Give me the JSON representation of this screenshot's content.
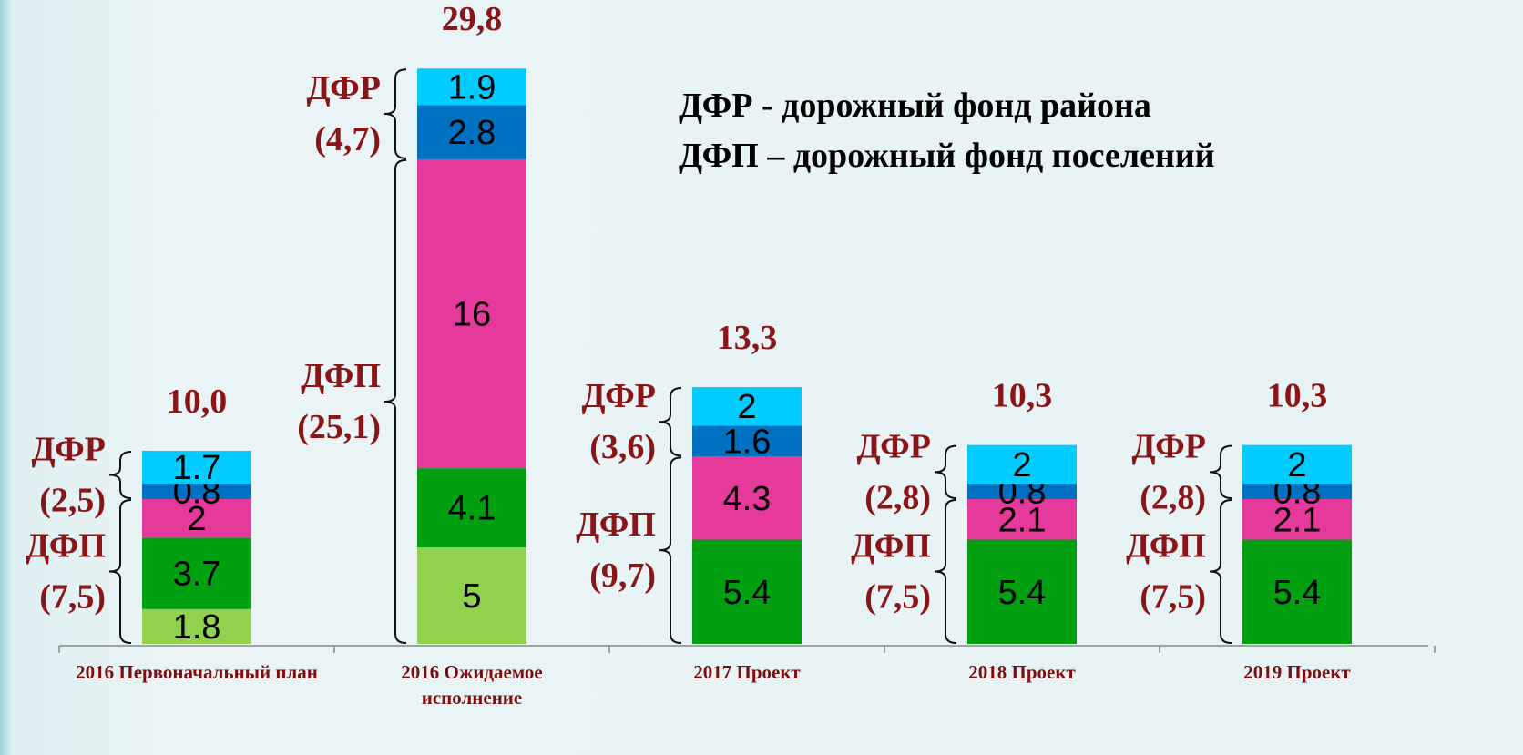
{
  "chart_data": {
    "type": "stacked_bar",
    "legend_lines": [
      "ДФР -  дорожный фонд района",
      "ДФП – дорожный фонд поселений"
    ],
    "categories": [
      "2016 Первоначальный план",
      "2016 Ожидаемое исполнение",
      "2017 Проект",
      "2018 Проект",
      "2019 Проект"
    ],
    "series": [
      {
        "color": "#92d050",
        "values": [
          1.8,
          5.0,
          null,
          null,
          null
        ]
      },
      {
        "color": "#00a010",
        "values": [
          3.7,
          4.1,
          5.4,
          5.4,
          5.4
        ]
      },
      {
        "color": "#e5399b",
        "values": [
          2.0,
          16.0,
          4.3,
          2.1,
          2.1
        ]
      },
      {
        "color": "#0070c0",
        "values": [
          0.8,
          2.8,
          1.6,
          0.8,
          0.8
        ]
      },
      {
        "color": "#00ccff",
        "values": [
          1.7,
          1.9,
          2.0,
          2.0,
          2.0
        ]
      }
    ],
    "totals": [
      10.0,
      29.8,
      13.3,
      10.3,
      10.3
    ],
    "total_labels": [
      "10,0",
      "29,8",
      "13,3",
      "10,3",
      "10,3"
    ],
    "brackets": [
      [
        {
          "label": "ДФП",
          "value": 7.5,
          "value_label": "(7,5)"
        },
        {
          "label": "ДФР",
          "value": 2.5,
          "value_label": "(2,5)"
        }
      ],
      [
        {
          "label": "ДФП",
          "value": 25.1,
          "value_label": "(25,1)"
        },
        {
          "label": "ДФР",
          "value": 4.7,
          "value_label": "(4,7)"
        }
      ],
      [
        {
          "label": "ДФП",
          "value": 9.7,
          "value_label": "(9,7)"
        },
        {
          "label": "ДФР",
          "value": 3.6,
          "value_label": "(3,6)"
        }
      ],
      [
        {
          "label": "ДФП",
          "value": 7.5,
          "value_label": "(7,5)"
        },
        {
          "label": "ДФР",
          "value": 2.8,
          "value_label": "(2,8)"
        }
      ],
      [
        {
          "label": "ДФП",
          "value": 7.5,
          "value_label": "(7,5)"
        },
        {
          "label": "ДФР",
          "value": 2.8,
          "value_label": "(2,8)"
        }
      ]
    ],
    "ylim": [
      0,
      30
    ]
  }
}
